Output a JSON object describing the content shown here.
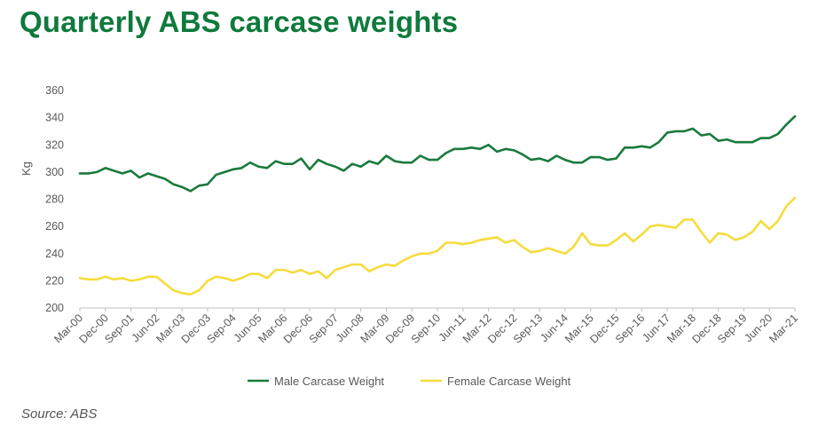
{
  "title": "Quarterly ABS carcase weights",
  "source": "Source: ABS",
  "chart_data": {
    "type": "line",
    "ylabel": "Kg",
    "xlabel": "",
    "ylim": [
      200,
      360
    ],
    "yticks": [
      200,
      220,
      240,
      260,
      280,
      300,
      320,
      340,
      360
    ],
    "x": [
      "Mar-00",
      "Jun-00",
      "Sep-00",
      "Dec-00",
      "Mar-01",
      "Jun-01",
      "Sep-01",
      "Dec-01",
      "Mar-02",
      "Jun-02",
      "Sep-02",
      "Dec-02",
      "Mar-03",
      "Jun-03",
      "Sep-03",
      "Dec-03",
      "Mar-04",
      "Jun-04",
      "Sep-04",
      "Dec-04",
      "Mar-05",
      "Jun-05",
      "Sep-05",
      "Dec-05",
      "Mar-06",
      "Jun-06",
      "Sep-06",
      "Dec-06",
      "Mar-07",
      "Jun-07",
      "Sep-07",
      "Dec-07",
      "Mar-08",
      "Jun-08",
      "Sep-08",
      "Dec-08",
      "Mar-09",
      "Jun-09",
      "Sep-09",
      "Dec-09",
      "Mar-10",
      "Jun-10",
      "Sep-10",
      "Dec-10",
      "Mar-11",
      "Jun-11",
      "Sep-11",
      "Dec-11",
      "Mar-12",
      "Jun-12",
      "Sep-12",
      "Dec-12",
      "Mar-13",
      "Jun-13",
      "Sep-13",
      "Dec-13",
      "Mar-14",
      "Jun-14",
      "Sep-14",
      "Dec-14",
      "Mar-15",
      "Jun-15",
      "Sep-15",
      "Dec-15",
      "Mar-16",
      "Jun-16",
      "Sep-16",
      "Dec-16",
      "Mar-17",
      "Jun-17",
      "Sep-17",
      "Dec-17",
      "Mar-18",
      "Jun-18",
      "Sep-18",
      "Dec-18",
      "Mar-19",
      "Jun-19",
      "Sep-19",
      "Dec-19",
      "Mar-20",
      "Jun-20",
      "Sep-20",
      "Dec-20",
      "Mar-21"
    ],
    "xtick_labels": [
      "Mar-00",
      "Dec-00",
      "Sep-01",
      "Jun-02",
      "Mar-03",
      "Dec-03",
      "Sep-04",
      "Jun-05",
      "Mar-06",
      "Dec-06",
      "Sep-07",
      "Jun-08",
      "Mar-09",
      "Dec-09",
      "Sep-10",
      "Jun-11",
      "Mar-12",
      "Dec-12",
      "Sep-13",
      "Jun-14",
      "Mar-15",
      "Dec-15",
      "Sep-16",
      "Jun-17",
      "Mar-18",
      "Dec-18",
      "Sep-19",
      "Jun-20",
      "Mar-21"
    ],
    "grid": false,
    "legend_position": "bottom",
    "series": [
      {
        "name": "Male Carcase Weight",
        "color": "#1a7a3c",
        "values": [
          299,
          299,
          300,
          303,
          301,
          299,
          301,
          296,
          299,
          297,
          295,
          291,
          289,
          286,
          290,
          291,
          298,
          300,
          302,
          303,
          307,
          304,
          303,
          308,
          306,
          306,
          310,
          302,
          309,
          306,
          304,
          301,
          306,
          304,
          308,
          306,
          312,
          308,
          307,
          307,
          312,
          309,
          309,
          314,
          317,
          317,
          318,
          317,
          320,
          315,
          317,
          316,
          313,
          309,
          310,
          308,
          312,
          309,
          307,
          307,
          311,
          311,
          309,
          310,
          318,
          318,
          319,
          318,
          322,
          329,
          330,
          330,
          332,
          327,
          328,
          323,
          324,
          322,
          322,
          322,
          325,
          325,
          328,
          335,
          341
        ]
      },
      {
        "name": "Female Carcase Weight",
        "color": "#f5dc3c",
        "values": [
          222,
          221,
          221,
          223,
          221,
          222,
          220,
          221,
          223,
          223,
          218,
          213,
          211,
          210,
          213,
          220,
          223,
          222,
          220,
          222,
          225,
          225,
          222,
          228,
          228,
          226,
          228,
          225,
          227,
          222,
          228,
          230,
          232,
          232,
          227,
          230,
          232,
          231,
          235,
          238,
          240,
          240,
          242,
          248,
          248,
          247,
          248,
          250,
          251,
          252,
          248,
          250,
          245,
          241,
          242,
          244,
          242,
          240,
          245,
          255,
          247,
          246,
          246,
          250,
          255,
          249,
          254,
          260,
          261,
          260,
          259,
          265,
          265,
          256,
          248,
          255,
          254,
          250,
          252,
          256,
          264,
          258,
          264,
          275,
          281
        ]
      }
    ]
  }
}
